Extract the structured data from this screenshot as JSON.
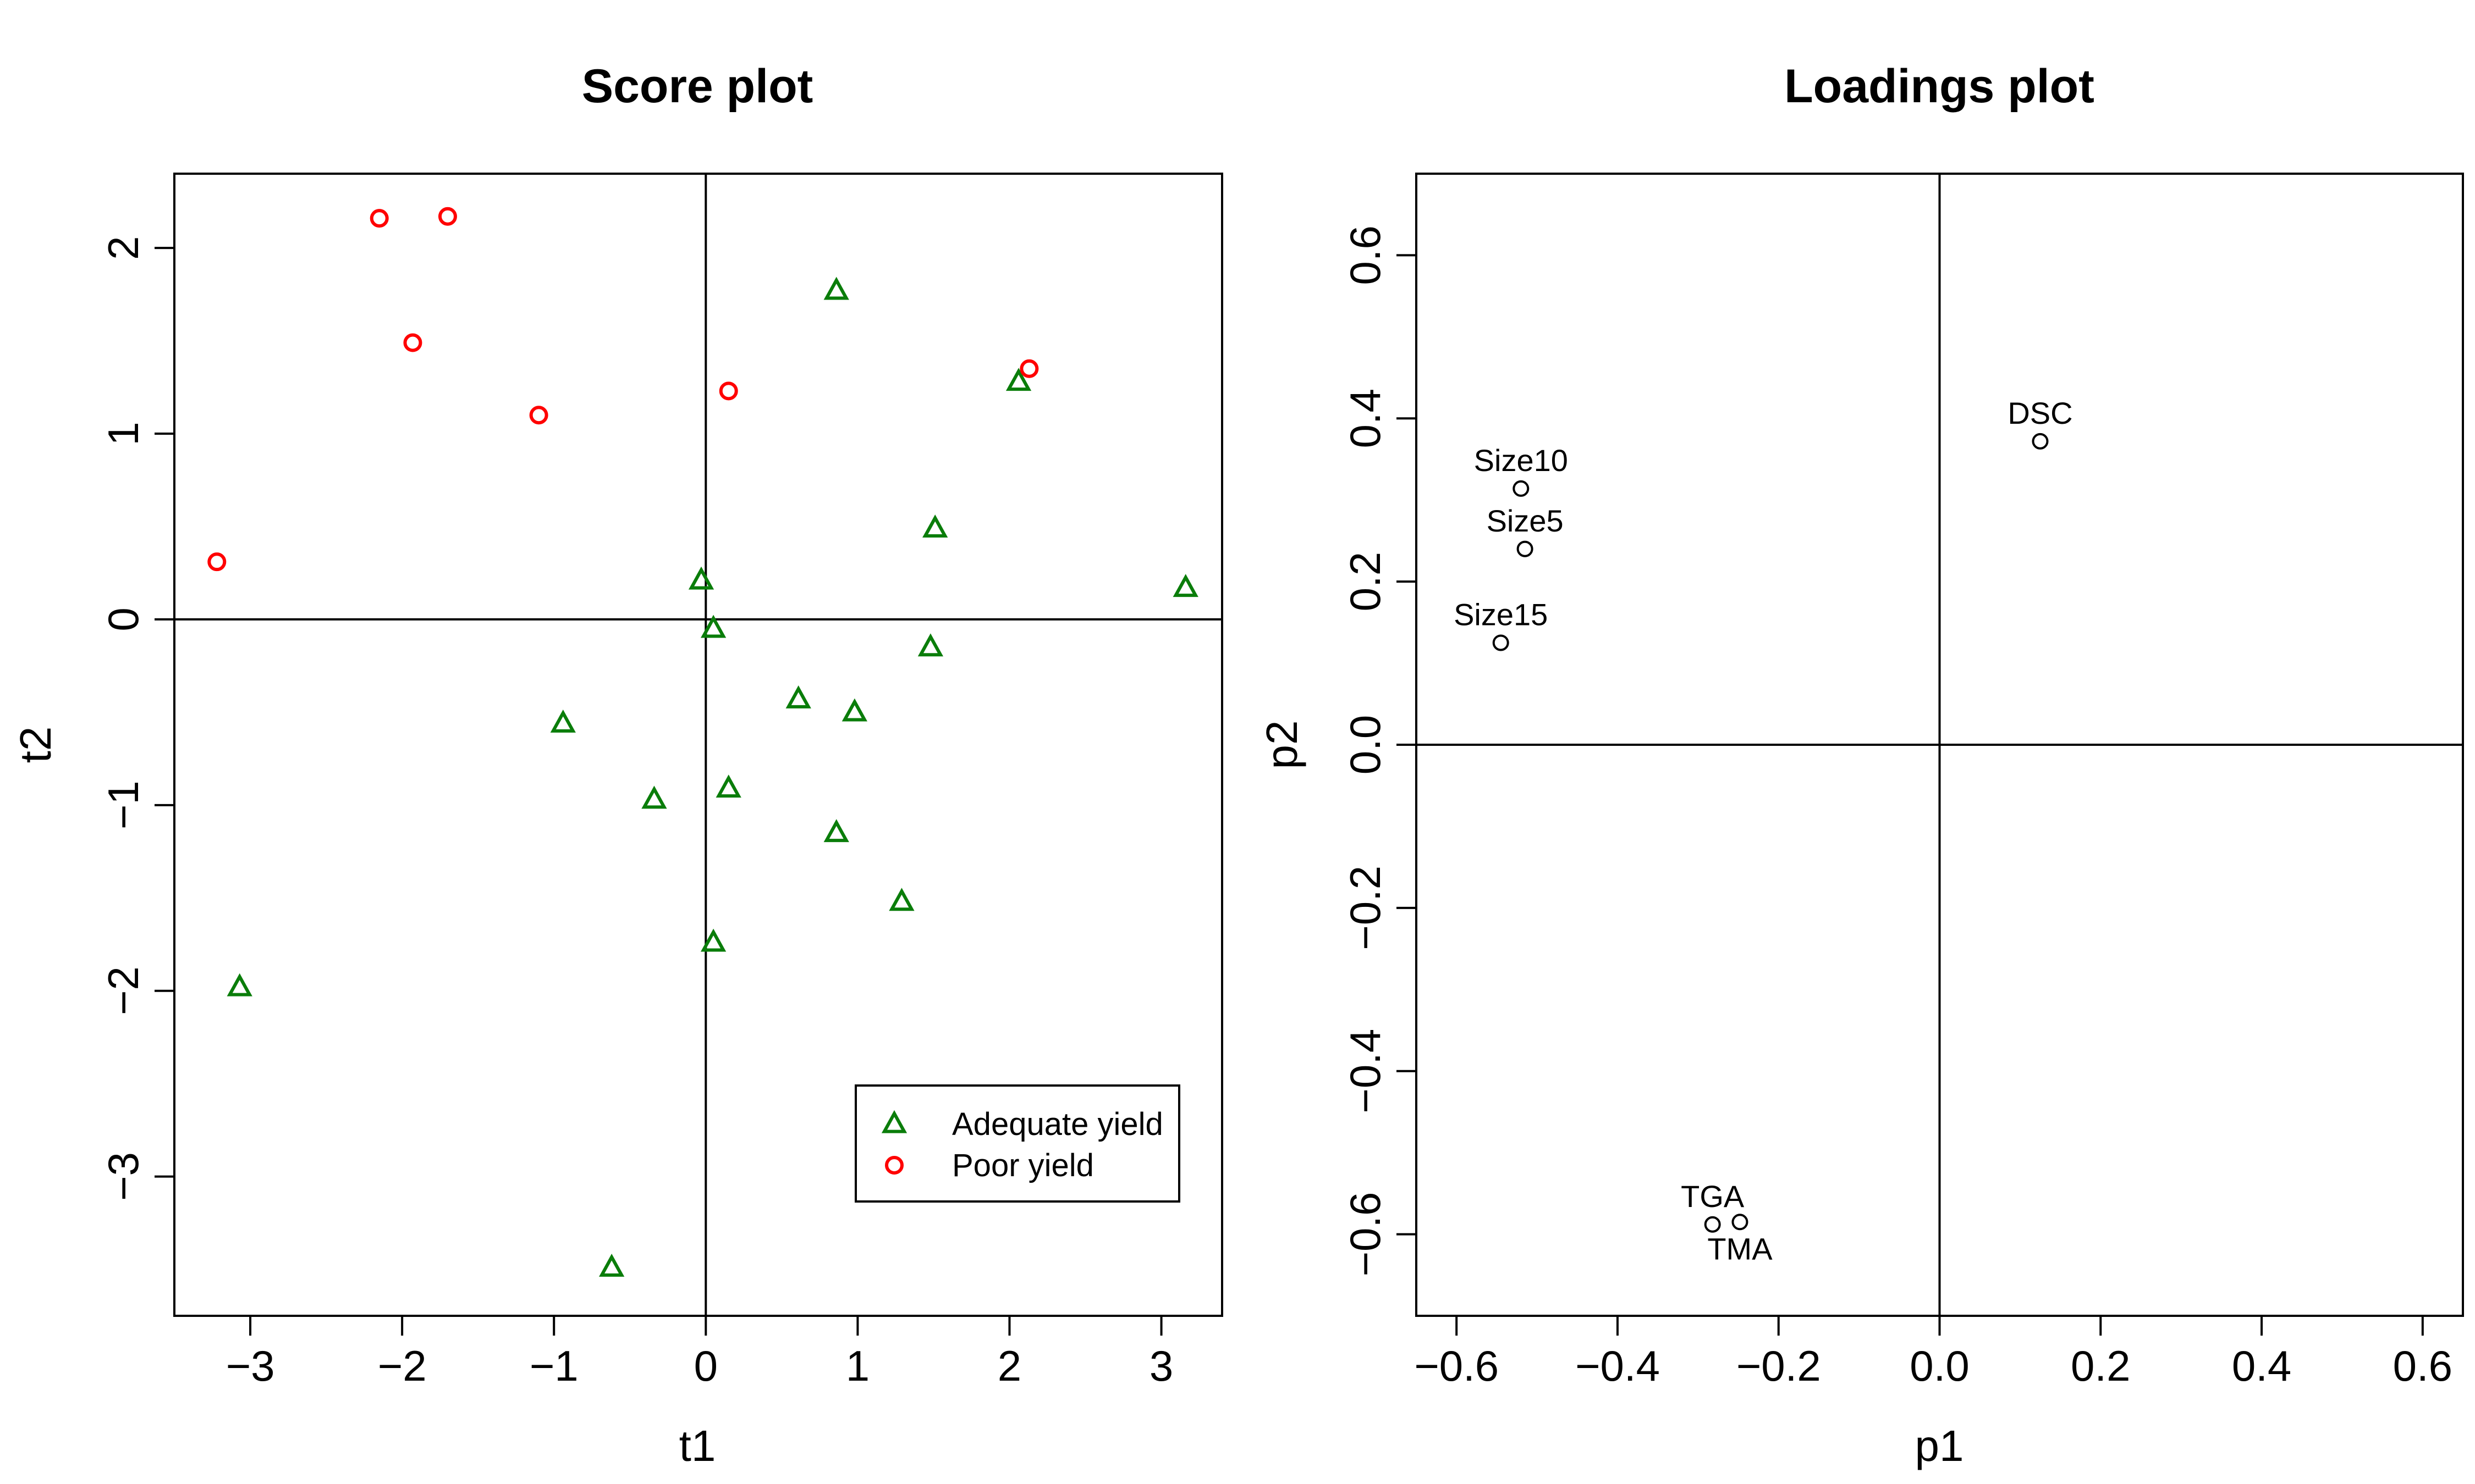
{
  "chart_data": [
    {
      "type": "scatter",
      "title": "Score plot",
      "xlabel": "t1",
      "ylabel": "t2",
      "xlim": [
        -3.5,
        3.4
      ],
      "ylim": [
        -3.75,
        2.4
      ],
      "xticks": [
        -3,
        -2,
        -1,
        0,
        1,
        2,
        3
      ],
      "yticks": [
        -3,
        -2,
        -1,
        0,
        1,
        2
      ],
      "xtick_labels": [
        "−3",
        "−2",
        "−1",
        "0",
        "1",
        "2",
        "3"
      ],
      "ytick_labels": [
        "−3",
        "−2",
        "−1",
        "0",
        "1",
        "2"
      ],
      "reference_lines": {
        "x": 0,
        "y": 0
      },
      "legend_position": "bottom-right",
      "series": [
        {
          "name": "Adequate yield",
          "marker": "triangle",
          "color": "#0a7d0a",
          "points": [
            [
              0.86,
              1.77
            ],
            [
              2.06,
              1.28
            ],
            [
              1.51,
              0.49
            ],
            [
              3.16,
              0.17
            ],
            [
              -0.03,
              0.21
            ],
            [
              0.05,
              -0.05
            ],
            [
              1.48,
              -0.15
            ],
            [
              0.61,
              -0.43
            ],
            [
              0.98,
              -0.5
            ],
            [
              -0.94,
              -0.56
            ],
            [
              0.15,
              -0.91
            ],
            [
              -0.34,
              -0.97
            ],
            [
              0.86,
              -1.15
            ],
            [
              1.29,
              -1.52
            ],
            [
              0.05,
              -1.74
            ],
            [
              -3.07,
              -1.98
            ],
            [
              -0.62,
              -3.49
            ]
          ]
        },
        {
          "name": "Poor yield",
          "marker": "circle",
          "color": "#ff0000",
          "points": [
            [
              -2.15,
              2.16
            ],
            [
              -1.7,
              2.17
            ],
            [
              -1.93,
              1.49
            ],
            [
              -1.1,
              1.1
            ],
            [
              0.15,
              1.23
            ],
            [
              2.13,
              1.35
            ],
            [
              -3.22,
              0.31
            ]
          ]
        }
      ]
    },
    {
      "type": "scatter",
      "title": "Loadings plot",
      "xlabel": "p1",
      "ylabel": "p2",
      "xlim": [
        -0.65,
        0.65
      ],
      "ylim": [
        -0.7,
        0.7
      ],
      "xticks": [
        -0.6,
        -0.4,
        -0.2,
        0,
        0.2,
        0.4,
        0.6
      ],
      "yticks": [
        -0.6,
        -0.4,
        -0.2,
        0,
        0.2,
        0.4,
        0.6
      ],
      "xtick_labels": [
        "−0.6",
        "−0.4",
        "−0.2",
        "0.0",
        "0.2",
        "0.4",
        "0.6"
      ],
      "ytick_labels": [
        "−0.6",
        "−0.4",
        "−0.2",
        "0.0",
        "0.2",
        "0.4",
        "0.6"
      ],
      "reference_lines": {
        "x": 0,
        "y": 0
      },
      "series": [
        {
          "marker": "circle",
          "color": "#000000",
          "points": [
            {
              "label": "DSC",
              "x": 0.125,
              "y": 0.372,
              "label_side": "above"
            },
            {
              "label": "Size10",
              "x": -0.52,
              "y": 0.314,
              "label_side": "above"
            },
            {
              "label": "Size5",
              "x": -0.515,
              "y": 0.24,
              "label_side": "above"
            },
            {
              "label": "Size15",
              "x": -0.545,
              "y": 0.125,
              "label_side": "above"
            },
            {
              "label": "TGA",
              "x": -0.282,
              "y": -0.588,
              "label_side": "above"
            },
            {
              "label": "TMA",
              "x": -0.248,
              "y": -0.585,
              "label_side": "below"
            }
          ]
        }
      ]
    }
  ]
}
